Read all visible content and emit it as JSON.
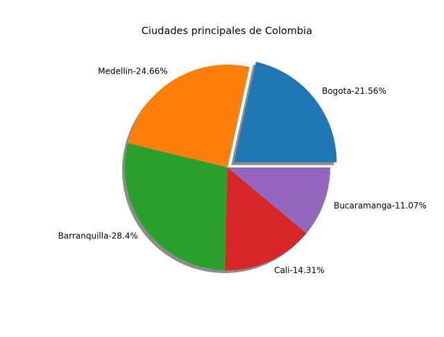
{
  "chart_data": {
    "type": "pie",
    "title": "Ciudades principales de Colombia",
    "labels": [
      "Bogota-21.56%",
      "Medellin-24.66%",
      "Barranquilla-28.4%",
      "Cali-14.31%",
      "Bucaramanga-11.07%"
    ],
    "values": [
      21.56,
      24.66,
      28.4,
      14.31,
      11.07
    ],
    "colors": [
      "#1f77b4",
      "#ff7f0e",
      "#2ca02c",
      "#d62728",
      "#9467bd"
    ],
    "explode": [
      0.08,
      0,
      0,
      0,
      0
    ],
    "shadow": true,
    "start_angle": 0
  }
}
